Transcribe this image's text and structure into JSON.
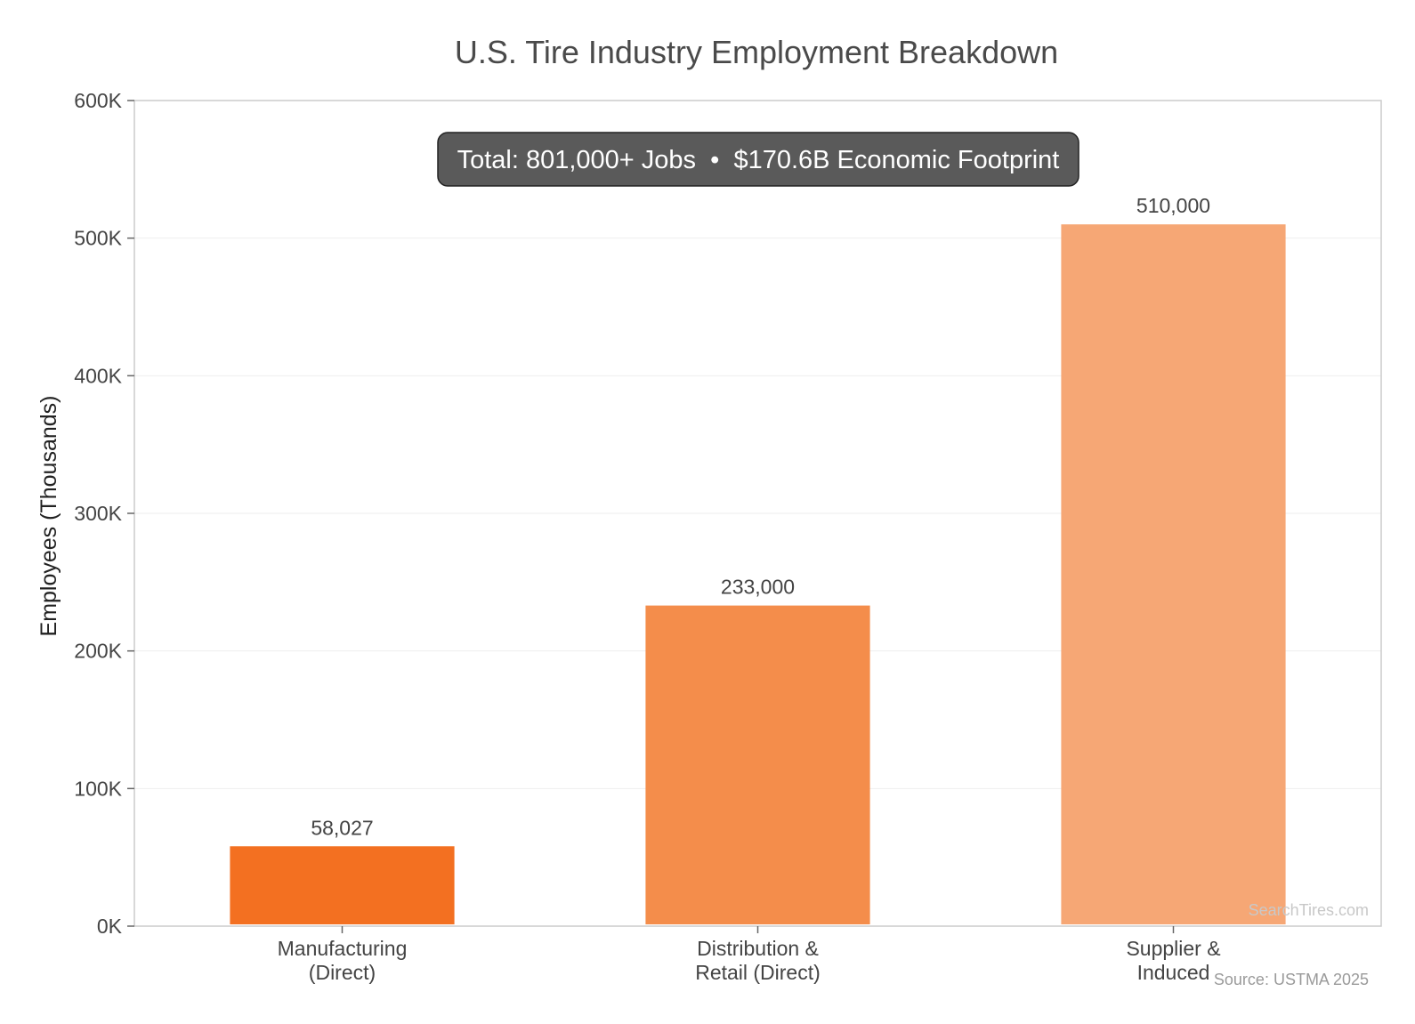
{
  "chart_data": {
    "type": "bar",
    "title": "U.S. Tire Industry Employment Breakdown",
    "ylabel": "Employees (Thousands)",
    "xlabel": "",
    "categories": [
      [
        "Manufacturing",
        "(Direct)"
      ],
      [
        "Distribution &",
        "Retail (Direct)"
      ],
      [
        "Supplier &",
        "Induced"
      ]
    ],
    "values": [
      58027,
      233000,
      510000
    ],
    "value_labels": [
      "58,027",
      "233,000",
      "510,000"
    ],
    "ylim": [
      0,
      600000
    ],
    "yticks": [
      0,
      100000,
      200000,
      300000,
      400000,
      500000,
      600000
    ],
    "ytick_labels": [
      "0K",
      "100K",
      "200K",
      "300K",
      "400K",
      "500K",
      "600K"
    ],
    "colors": [
      "#f37021",
      "#f48d4b",
      "#f6a775"
    ],
    "grid": true,
    "annotation": "Total: 801,000+ Jobs  •  $170.6B Economic Footprint",
    "watermark": "SearchTires.com",
    "source": "Source: USTMA 2025"
  }
}
